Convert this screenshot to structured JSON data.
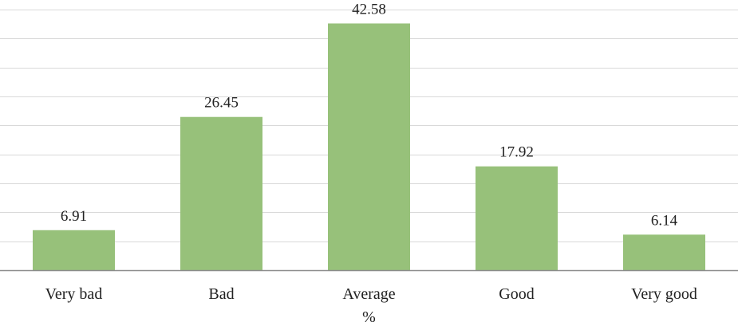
{
  "chart_data": {
    "type": "bar",
    "categories": [
      "Very bad",
      "Bad",
      "Average",
      "Good",
      "Very good"
    ],
    "values": [
      6.91,
      26.45,
      42.58,
      17.92,
      6.14
    ],
    "data_labels": [
      "6.91",
      "26.45",
      "42.58",
      "17.92",
      "6.14"
    ],
    "title": "",
    "xlabel": "%",
    "ylabel": "",
    "ylim": [
      0,
      45
    ],
    "grid": true,
    "legend": "none",
    "bar_color": "#97c17a",
    "grid_color": "#d9d9d9",
    "axis_color": "#8c8c8c"
  }
}
